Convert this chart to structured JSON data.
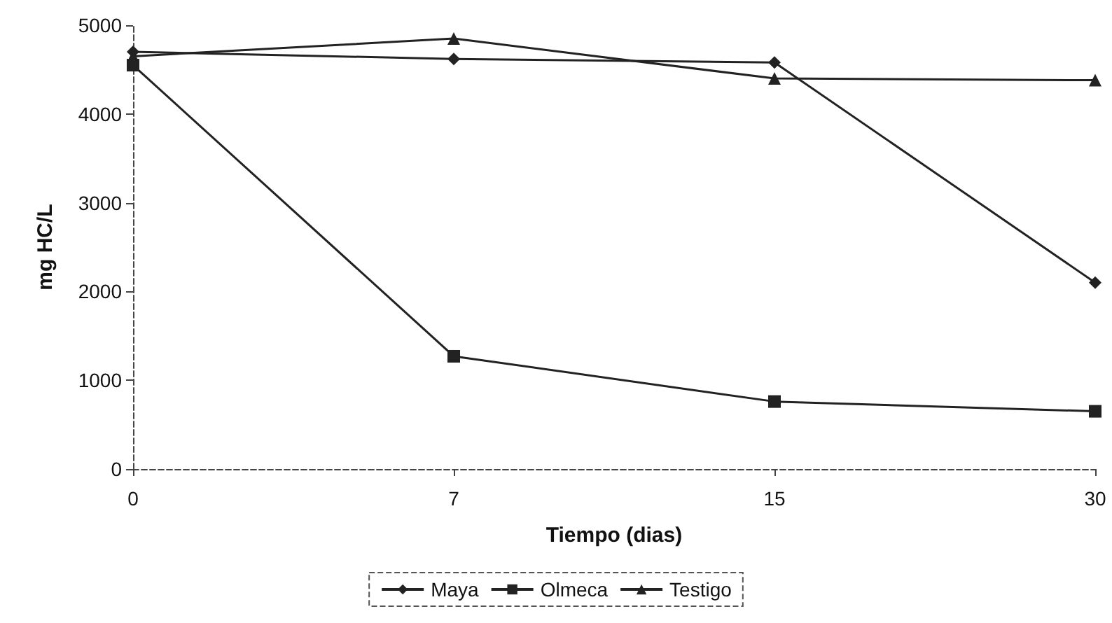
{
  "chart_data": {
    "type": "line",
    "xlabel": "Tiempo (dias)",
    "ylabel": "mg HC/L",
    "categories": [
      "0",
      "7",
      "15",
      "30"
    ],
    "series": [
      {
        "name": "Maya",
        "color": "#222222",
        "marker": "diamond",
        "values": [
          4700,
          4620,
          4580,
          2100
        ]
      },
      {
        "name": "Olmeca",
        "color": "#222222",
        "marker": "square",
        "values": [
          4550,
          1270,
          760,
          650
        ]
      },
      {
        "name": "Testigo",
        "color": "#222222",
        "marker": "triangle",
        "values": [
          4650,
          4850,
          4400,
          4380
        ]
      }
    ],
    "ylim": [
      0,
      5000
    ],
    "yticks": [
      0,
      1000,
      2000,
      3000,
      4000,
      5000
    ],
    "grid": false,
    "legend": "bottom",
    "line_style": "solid"
  }
}
